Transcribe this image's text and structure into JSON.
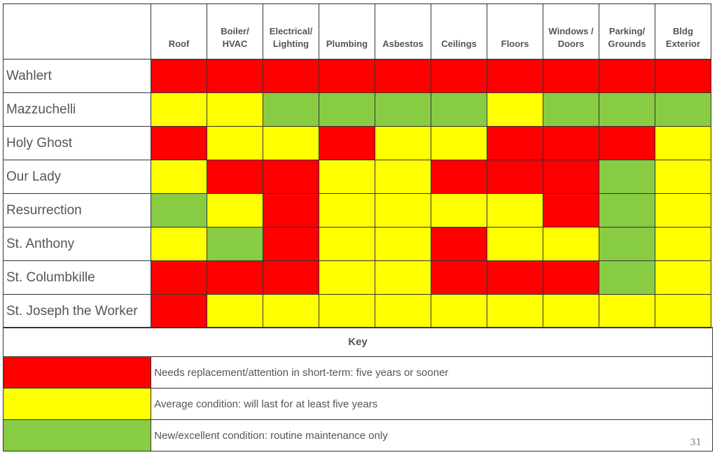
{
  "chart_data": {
    "type": "heatmap",
    "columns": [
      "Roof",
      "Boiler/ HVAC",
      "Electrical/ Lighting",
      "Plumbing",
      "Asbestos",
      "Ceilings",
      "Floors",
      "Windows / Doors",
      "Parking/ Grounds",
      "Bldg Exterior"
    ],
    "rows": [
      {
        "name": "Wahlert",
        "values": [
          "red",
          "red",
          "red",
          "red",
          "red",
          "red",
          "red",
          "red",
          "red",
          "red"
        ]
      },
      {
        "name": "Mazzuchelli",
        "values": [
          "yellow",
          "yellow",
          "green",
          "green",
          "green",
          "green",
          "yellow",
          "green",
          "green",
          "green"
        ]
      },
      {
        "name": "Holy Ghost",
        "values": [
          "red",
          "yellow",
          "yellow",
          "red",
          "yellow",
          "yellow",
          "red",
          "red",
          "red",
          "yellow"
        ]
      },
      {
        "name": "Our Lady",
        "values": [
          "yellow",
          "red",
          "red",
          "yellow",
          "yellow",
          "red",
          "red",
          "red",
          "green",
          "yellow"
        ]
      },
      {
        "name": "Resurrection",
        "values": [
          "green",
          "yellow",
          "red",
          "yellow",
          "yellow",
          "yellow",
          "yellow",
          "red",
          "green",
          "yellow"
        ]
      },
      {
        "name": "St. Anthony",
        "values": [
          "yellow",
          "green",
          "red",
          "yellow",
          "yellow",
          "red",
          "yellow",
          "yellow",
          "green",
          "yellow"
        ]
      },
      {
        "name": "St. Columbkille",
        "values": [
          "red",
          "red",
          "red",
          "yellow",
          "yellow",
          "red",
          "red",
          "red",
          "green",
          "yellow"
        ]
      },
      {
        "name": "St. Joseph the Worker",
        "values": [
          "red",
          "yellow",
          "yellow",
          "yellow",
          "yellow",
          "yellow",
          "yellow",
          "yellow",
          "yellow",
          "yellow"
        ]
      }
    ],
    "colors": {
      "red": "#ff0000",
      "yellow": "#ffff00",
      "green": "#88cc44"
    },
    "key": {
      "title": "Key",
      "entries": [
        {
          "color": "red",
          "label": "Needs replacement/attention in short-term: five years or sooner"
        },
        {
          "color": "yellow",
          "label": "Average condition: will last for at least five years"
        },
        {
          "color": "green",
          "label": "New/excellent condition: routine maintenance only"
        }
      ]
    }
  },
  "page_number": "31"
}
